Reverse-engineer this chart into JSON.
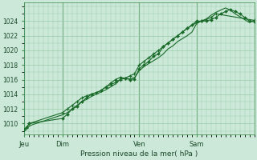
{
  "xlabel": "Pression niveau de la mer( hPa )",
  "bg_color": "#cce8d8",
  "plot_bg_color": "#cce8d8",
  "grid_color": "#99ccaa",
  "line_color": "#1a6b2a",
  "ylim": [
    1008.5,
    1026.5
  ],
  "yticks": [
    1010,
    1012,
    1014,
    1016,
    1018,
    1020,
    1022,
    1024
  ],
  "ytick_fontsize": 5.5,
  "xtick_fontsize": 6,
  "xlabel_fontsize": 6.5,
  "xlim": [
    0,
    96
  ],
  "day_positions": [
    0,
    16,
    48,
    72
  ],
  "day_labels": [
    "Jeu",
    "Dim",
    "Ven",
    "Sam"
  ],
  "series1_x": [
    0,
    1,
    2,
    3,
    16,
    18,
    20,
    22,
    24,
    26,
    28,
    30,
    32,
    34,
    36,
    38,
    40,
    42,
    44,
    46,
    48,
    50,
    52,
    54,
    56,
    58,
    60,
    62,
    64,
    66,
    68,
    70,
    72,
    74,
    76,
    78,
    80,
    82,
    84,
    86,
    88,
    90,
    92,
    94,
    96
  ],
  "series1_y": [
    1009.2,
    1009.4,
    1009.6,
    1009.8,
    1011.2,
    1011.5,
    1012.0,
    1012.5,
    1013.0,
    1013.3,
    1013.7,
    1014.0,
    1014.3,
    1014.6,
    1015.0,
    1015.4,
    1016.0,
    1016.2,
    1016.1,
    1016.3,
    1017.2,
    1017.8,
    1018.2,
    1018.6,
    1019.0,
    1019.5,
    1020.2,
    1020.6,
    1021.2,
    1021.6,
    1022.0,
    1022.5,
    1023.7,
    1024.0,
    1024.3,
    1024.8,
    1025.2,
    1025.5,
    1025.8,
    1025.5,
    1025.0,
    1024.6,
    1024.2,
    1023.8,
    1024.1
  ],
  "series2_x": [
    0,
    1,
    2,
    16,
    18,
    20,
    22,
    24,
    26,
    28,
    32,
    34,
    36,
    38,
    40,
    42,
    44,
    46,
    48,
    50,
    52,
    54,
    56,
    58,
    60,
    62,
    64,
    66,
    68,
    70,
    72,
    74,
    76,
    78,
    80,
    82,
    84,
    86,
    88,
    90,
    92,
    94,
    96
  ],
  "series2_y": [
    1009.2,
    1009.5,
    1010.0,
    1010.7,
    1011.3,
    1012.0,
    1012.3,
    1013.0,
    1013.5,
    1014.0,
    1014.5,
    1015.0,
    1015.5,
    1016.0,
    1016.3,
    1016.2,
    1016.0,
    1016.1,
    1017.5,
    1018.0,
    1018.5,
    1019.2,
    1019.5,
    1020.5,
    1021.0,
    1021.5,
    1022.0,
    1022.5,
    1023.0,
    1023.5,
    1024.0,
    1024.0,
    1024.0,
    1024.2,
    1024.5,
    1025.0,
    1025.3,
    1025.6,
    1025.3,
    1025.0,
    1024.5,
    1024.0,
    1023.9
  ],
  "series3_x": [
    0,
    1,
    2,
    16,
    18,
    20,
    22,
    24,
    26,
    28,
    30,
    32,
    34,
    36,
    38,
    40,
    42,
    44,
    46,
    48,
    50,
    52,
    54,
    56,
    58,
    60,
    62,
    64,
    66,
    68,
    72,
    74,
    76,
    78,
    80,
    96
  ],
  "series3_y": [
    1009.2,
    1009.4,
    1010.0,
    1011.5,
    1012.0,
    1012.5,
    1013.0,
    1013.5,
    1013.8,
    1014.0,
    1014.2,
    1014.5,
    1015.0,
    1015.3,
    1015.6,
    1016.0,
    1016.2,
    1016.5,
    1016.8,
    1018.0,
    1018.5,
    1019.0,
    1019.5,
    1020.0,
    1020.5,
    1021.0,
    1021.5,
    1022.0,
    1022.5,
    1023.0,
    1023.8,
    1024.0,
    1024.2,
    1024.5,
    1025.0,
    1024.1
  ]
}
